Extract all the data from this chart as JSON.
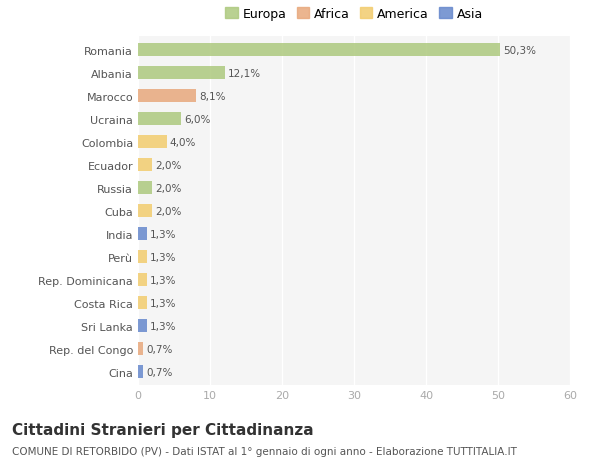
{
  "categories": [
    "Romania",
    "Albania",
    "Marocco",
    "Ucraina",
    "Colombia",
    "Ecuador",
    "Russia",
    "Cuba",
    "India",
    "Perù",
    "Rep. Dominicana",
    "Costa Rica",
    "Sri Lanka",
    "Rep. del Congo",
    "Cina"
  ],
  "values": [
    50.3,
    12.1,
    8.1,
    6.0,
    4.0,
    2.0,
    2.0,
    2.0,
    1.3,
    1.3,
    1.3,
    1.3,
    1.3,
    0.7,
    0.7
  ],
  "labels": [
    "50,3%",
    "12,1%",
    "8,1%",
    "6,0%",
    "4,0%",
    "2,0%",
    "2,0%",
    "2,0%",
    "1,3%",
    "1,3%",
    "1,3%",
    "1,3%",
    "1,3%",
    "0,7%",
    "0,7%"
  ],
  "colors": [
    "#adc97e",
    "#adc97e",
    "#e8a87c",
    "#adc97e",
    "#f2cc6e",
    "#f2cc6e",
    "#adc97e",
    "#f2cc6e",
    "#6688cc",
    "#f2cc6e",
    "#f2cc6e",
    "#f2cc6e",
    "#6688cc",
    "#e8a87c",
    "#6688cc"
  ],
  "legend_labels": [
    "Europa",
    "Africa",
    "America",
    "Asia"
  ],
  "legend_colors": [
    "#adc97e",
    "#e8a87c",
    "#f2cc6e",
    "#6688cc"
  ],
  "title": "Cittadini Stranieri per Cittadinanza",
  "subtitle": "COMUNE DI RETORBIDO (PV) - Dati ISTAT al 1° gennaio di ogni anno - Elaborazione TUTTITALIA.IT",
  "xlim": [
    0,
    60
  ],
  "xticks": [
    0,
    10,
    20,
    30,
    40,
    50,
    60
  ],
  "plot_bg_color": "#f5f5f5",
  "fig_bg_color": "#ffffff",
  "grid_color": "#ffffff",
  "bar_height": 0.55,
  "title_fontsize": 11,
  "subtitle_fontsize": 7.5,
  "label_fontsize": 7.5,
  "tick_fontsize": 8,
  "legend_fontsize": 9
}
